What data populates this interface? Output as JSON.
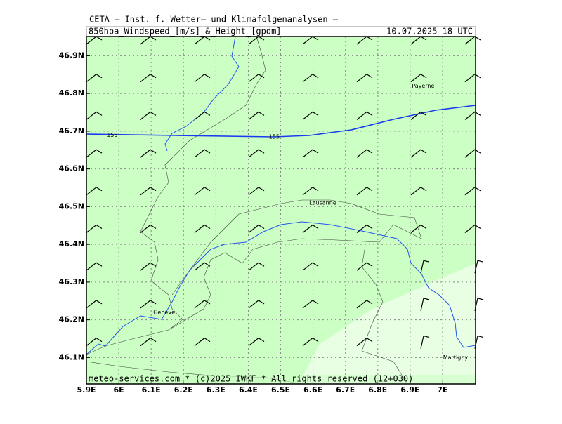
{
  "header": {
    "title": "CETA — Inst. f. Wetter— und Klimafolgenanalysen —",
    "field": "850hpa_Windspeed_[m/s]_&_Height_[gpdm]",
    "valid": "10.07.2025 18 UTC"
  },
  "map": {
    "xlim": [
      5.9,
      7.102
    ],
    "ylim": [
      46.03,
      46.951
    ],
    "xticks": [
      {
        "value": 5.9,
        "label": "5.9E"
      },
      {
        "value": 6.0,
        "label": "6E"
      },
      {
        "value": 6.1,
        "label": "6.1E"
      },
      {
        "value": 6.2,
        "label": "6.2E"
      },
      {
        "value": 6.3,
        "label": "6.3E"
      },
      {
        "value": 6.4,
        "label": "6.4E"
      },
      {
        "value": 6.5,
        "label": "6.5E"
      },
      {
        "value": 6.6,
        "label": "6.6E"
      },
      {
        "value": 6.7,
        "label": "6.7E"
      },
      {
        "value": 6.8,
        "label": "6.8E"
      },
      {
        "value": 6.9,
        "label": "6.9E"
      },
      {
        "value": 7.0,
        "label": "7E"
      }
    ],
    "yticks": [
      {
        "value": 46.1,
        "label": "46.1N"
      },
      {
        "value": 46.2,
        "label": "46.2N"
      },
      {
        "value": 46.3,
        "label": "46.3N"
      },
      {
        "value": 46.4,
        "label": "46.4N"
      },
      {
        "value": 46.5,
        "label": "46.5N"
      },
      {
        "value": 46.6,
        "label": "46.6N"
      },
      {
        "value": 46.7,
        "label": "46.7N"
      },
      {
        "value": 46.8,
        "label": "46.8N"
      },
      {
        "value": 46.9,
        "label": "46.9N"
      }
    ],
    "places": [
      {
        "name": "Payerne",
        "lon": 6.94,
        "lat": 46.82
      },
      {
        "name": "Lausanne",
        "lon": 6.63,
        "lat": 46.51
      },
      {
        "name": "Geneve",
        "lon": 6.14,
        "lat": 46.22
      },
      {
        "name": "Martigny",
        "lon": 7.04,
        "lat": 46.1
      }
    ],
    "contour_labels": [
      {
        "text": "155",
        "lon": 5.98,
        "lat": 46.69
      },
      {
        "text": "155",
        "lon": 6.48,
        "lat": 46.685
      }
    ],
    "footer": "meteo-services.com * (c)2025 IWKF * All rights reserved (12+030)"
  }
}
